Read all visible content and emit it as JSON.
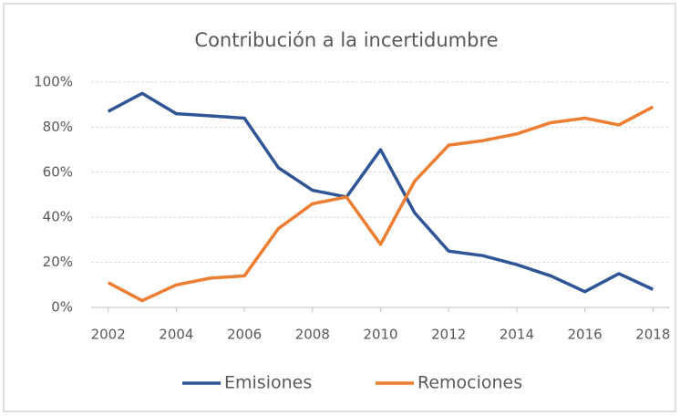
{
  "chart_data": {
    "type": "line",
    "title": "Contribución a la incertidumbre",
    "x": [
      2002,
      2003,
      2004,
      2005,
      2006,
      2007,
      2008,
      2009,
      2010,
      2011,
      2012,
      2013,
      2014,
      2015,
      2016,
      2017,
      2018
    ],
    "series": [
      {
        "name": "Emisiones",
        "color": "#2f5597",
        "values": [
          87,
          95,
          86,
          85,
          84,
          62,
          52,
          49,
          70,
          42,
          25,
          23,
          19,
          14,
          7,
          15,
          8
        ]
      },
      {
        "name": "Remociones",
        "color": "#ed7d31",
        "values": [
          11,
          3,
          10,
          13,
          14,
          35,
          46,
          49,
          28,
          56,
          72,
          74,
          77,
          82,
          84,
          81,
          89
        ]
      }
    ],
    "xlim": [
      2001.5,
      2018.5
    ],
    "xticks": [
      2002,
      2004,
      2006,
      2008,
      2010,
      2012,
      2014,
      2016,
      2018
    ],
    "ylim": [
      0,
      100
    ],
    "yticks": [
      {
        "value": 0,
        "label": "0%"
      },
      {
        "value": 20,
        "label": "20%"
      },
      {
        "value": 40,
        "label": "40%"
      },
      {
        "value": 60,
        "label": "60%"
      },
      {
        "value": 80,
        "label": "80%"
      },
      {
        "value": 100,
        "label": "100%"
      }
    ],
    "grid": true,
    "legend": "bottom"
  }
}
